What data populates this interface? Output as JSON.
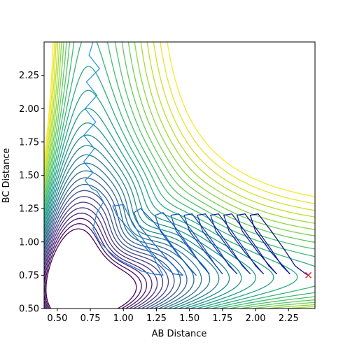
{
  "chart_data": {
    "type": "contour",
    "title": "",
    "xlabel": "AB Distance",
    "ylabel": "BC Distance",
    "xlim": [
      0.4,
      2.45
    ],
    "ylim": [
      0.5,
      2.5
    ],
    "xticks": [
      0.5,
      0.75,
      1.0,
      1.25,
      1.5,
      1.75,
      2.0,
      2.25
    ],
    "xtick_labels": [
      "0.50",
      "0.75",
      "1.00",
      "1.25",
      "1.50",
      "1.75",
      "2.00",
      "2.25"
    ],
    "yticks": [
      0.5,
      0.75,
      1.0,
      1.25,
      1.5,
      1.75,
      2.0,
      2.25
    ],
    "ytick_labels": [
      "0.50",
      "0.75",
      "1.00",
      "1.25",
      "1.50",
      "1.75",
      "2.00",
      "2.25"
    ],
    "grid": false,
    "colormap": "viridis",
    "contour_levels": 30,
    "series": [
      {
        "kind": "trajectory",
        "color": "#1f77b4",
        "points": [
          [
            0.77,
            2.5
          ],
          [
            0.74,
            2.4
          ],
          [
            0.82,
            2.3
          ],
          [
            0.72,
            2.2
          ],
          [
            0.8,
            2.1
          ],
          [
            0.71,
            2.0
          ],
          [
            0.79,
            1.9
          ],
          [
            0.7,
            1.8
          ],
          [
            0.78,
            1.7
          ],
          [
            0.7,
            1.6
          ],
          [
            0.77,
            1.52
          ],
          [
            0.71,
            1.46
          ],
          [
            0.76,
            1.4
          ],
          [
            0.8,
            1.38
          ],
          [
            0.85,
            1.3
          ],
          [
            0.8,
            1.22
          ],
          [
            0.77,
            1.1
          ],
          [
            0.82,
            1.0
          ],
          [
            0.9,
            0.92
          ],
          [
            0.98,
            0.86
          ],
          [
            1.06,
            0.82
          ],
          [
            1.14,
            0.78
          ],
          [
            1.22,
            0.76
          ],
          [
            1.3,
            0.75
          ],
          [
            1.22,
            0.9
          ],
          [
            1.08,
            1.05
          ],
          [
            0.95,
            1.2
          ],
          [
            0.92,
            1.27
          ],
          [
            1.0,
            1.28
          ],
          [
            1.05,
            1.18
          ],
          [
            1.12,
            1.06
          ],
          [
            1.2,
            0.94
          ],
          [
            1.3,
            0.82
          ],
          [
            1.38,
            0.76
          ],
          [
            1.45,
            0.75
          ],
          [
            1.35,
            0.85
          ],
          [
            1.22,
            1.0
          ],
          [
            1.12,
            1.12
          ],
          [
            1.08,
            1.22
          ],
          [
            1.13,
            1.25
          ],
          [
            1.22,
            1.16
          ],
          [
            1.32,
            1.04
          ],
          [
            1.42,
            0.9
          ],
          [
            1.5,
            0.8
          ],
          [
            1.55,
            0.75
          ],
          [
            1.4,
            0.92
          ],
          [
            1.28,
            1.08
          ],
          [
            1.24,
            1.2
          ],
          [
            1.3,
            1.22
          ],
          [
            1.4,
            1.1
          ],
          [
            1.5,
            0.96
          ],
          [
            1.58,
            0.84
          ],
          [
            1.65,
            0.76
          ],
          [
            1.52,
            0.92
          ],
          [
            1.4,
            1.08
          ],
          [
            1.36,
            1.2
          ],
          [
            1.42,
            1.21
          ],
          [
            1.52,
            1.08
          ],
          [
            1.62,
            0.94
          ],
          [
            1.7,
            0.82
          ],
          [
            1.75,
            0.76
          ],
          [
            1.62,
            0.92
          ],
          [
            1.5,
            1.08
          ],
          [
            1.46,
            1.2
          ],
          [
            1.52,
            1.21
          ],
          [
            1.62,
            1.08
          ],
          [
            1.72,
            0.94
          ],
          [
            1.8,
            0.82
          ],
          [
            1.86,
            0.76
          ],
          [
            1.72,
            0.92
          ],
          [
            1.6,
            1.08
          ],
          [
            1.56,
            1.2
          ],
          [
            1.62,
            1.21
          ],
          [
            1.72,
            1.08
          ],
          [
            1.82,
            0.94
          ],
          [
            1.9,
            0.82
          ],
          [
            1.96,
            0.76
          ],
          [
            1.82,
            0.92
          ],
          [
            1.7,
            1.08
          ],
          [
            1.66,
            1.2
          ],
          [
            1.72,
            1.21
          ],
          [
            1.82,
            1.08
          ],
          [
            1.92,
            0.94
          ],
          [
            2.0,
            0.82
          ],
          [
            2.06,
            0.76
          ],
          [
            1.92,
            0.92
          ],
          [
            1.8,
            1.08
          ],
          [
            1.76,
            1.2
          ],
          [
            1.82,
            1.21
          ],
          [
            1.92,
            1.08
          ],
          [
            2.02,
            0.94
          ],
          [
            2.1,
            0.82
          ],
          [
            2.16,
            0.76
          ],
          [
            2.02,
            0.92
          ],
          [
            1.9,
            1.08
          ],
          [
            1.86,
            1.2
          ],
          [
            1.92,
            1.21
          ],
          [
            2.02,
            1.08
          ],
          [
            2.12,
            0.94
          ],
          [
            2.2,
            0.82
          ],
          [
            2.26,
            0.76
          ],
          [
            2.12,
            0.92
          ],
          [
            2.0,
            1.08
          ],
          [
            1.96,
            1.2
          ],
          [
            2.02,
            1.21
          ],
          [
            2.12,
            1.08
          ],
          [
            2.22,
            0.94
          ],
          [
            2.3,
            0.82
          ],
          [
            2.38,
            0.76
          ],
          [
            2.4,
            0.75
          ]
        ]
      }
    ],
    "marker": {
      "x": 2.4,
      "y": 0.75,
      "symbol": "x",
      "color": "#d62728"
    }
  }
}
